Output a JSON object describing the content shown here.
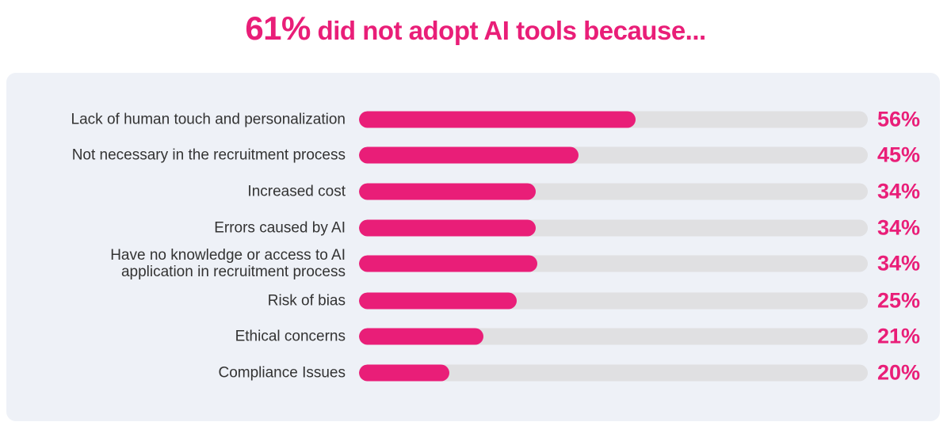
{
  "title": {
    "highlight": "61%",
    "rest": " did not adopt AI tools because..."
  },
  "colors": {
    "accent": "#e91e78",
    "track": "#e0e0e2",
    "panel": "#eef1f7"
  },
  "chart_data": {
    "type": "bar",
    "orientation": "horizontal",
    "title": "61% did not adopt AI tools because...",
    "categories": [
      "Lack of human touch and personalization",
      "Not necessary in the recruitment process",
      "Increased cost",
      "Errors caused by AI",
      "Have no knowledge or access to AI application in recruitment process",
      "Risk of bias",
      "Ethical concerns",
      "Compliance Issues"
    ],
    "values": [
      56,
      45,
      34,
      34,
      34,
      25,
      21,
      20
    ],
    "value_labels": [
      "56%",
      "45%",
      "34%",
      "34%",
      "34%",
      "25%",
      "21%",
      "20%"
    ],
    "bar_fill_fraction": [
      0.543,
      0.432,
      0.348,
      0.348,
      0.35,
      0.31,
      0.245,
      0.178
    ],
    "xlabel": "",
    "ylabel": "",
    "xlim": [
      0,
      100
    ],
    "grid": false
  }
}
